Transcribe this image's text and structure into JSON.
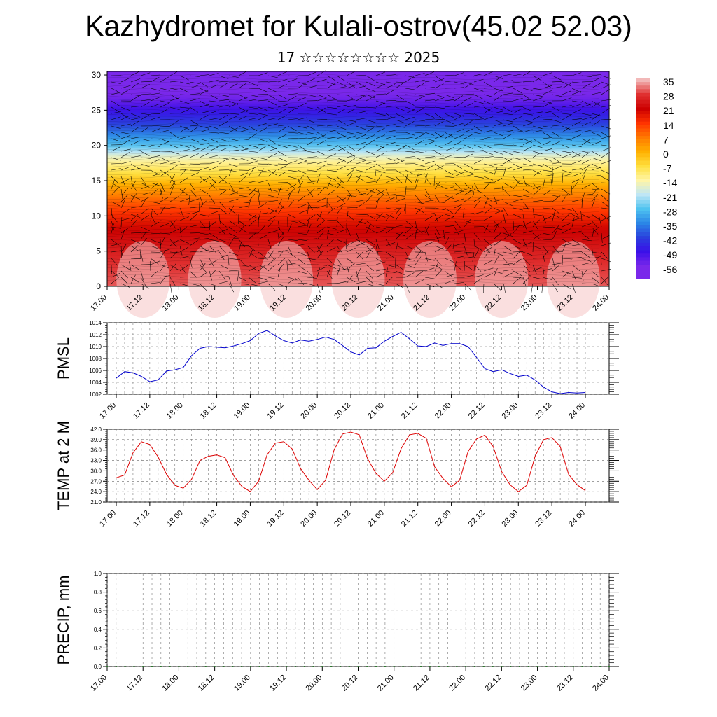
{
  "header": {
    "title": "Kazhydromet for Kulali-ostrov(45.02 52.03)",
    "subtitle": "17 ☆☆☆☆☆☆☆☆ 2025"
  },
  "chart_data": [
    {
      "type": "heatmap",
      "y_ticks": [
        "0",
        "5",
        "10",
        "15",
        "20",
        "25",
        "30"
      ],
      "ylim": [
        0,
        30.5
      ],
      "x_ticks": [
        "17.00",
        "17.12",
        "18.00",
        "18.12",
        "19.00",
        "19.12",
        "20.00",
        "20.12",
        "21.00",
        "21.12",
        "22.00",
        "22.12",
        "23.00",
        "23.12",
        "24.00"
      ],
      "colorbar_labels": [
        "35",
        "28",
        "21",
        "14",
        "7",
        "0",
        "-7",
        "-14",
        "-21",
        "-28",
        "-35",
        "-42",
        "-49",
        "-56"
      ],
      "colorbar_colors": [
        "#f2b8b8",
        "#e03030",
        "#cc0000",
        "#ff3300",
        "#ff7a00",
        "#ffb000",
        "#ffe040",
        "#fff5a8",
        "#bfe6f5",
        "#4fc3f0",
        "#2b86e6",
        "#2a40dd",
        "#3a10e8",
        "#7a28ea"
      ],
      "level_profile": [
        {
          "level": 0,
          "value": 30
        },
        {
          "level": 3,
          "value": 28
        },
        {
          "level": 8,
          "value": 21
        },
        {
          "level": 12,
          "value": 10
        },
        {
          "level": 14,
          "value": 2
        },
        {
          "level": 16,
          "value": -7
        },
        {
          "level": 18,
          "value": -14
        },
        {
          "level": 20,
          "value": -28
        },
        {
          "level": 23,
          "value": -42
        },
        {
          "level": 25,
          "value": -49
        },
        {
          "level": 27,
          "value": -56
        },
        {
          "level": 30.5,
          "value": -56
        }
      ],
      "grid": false
    },
    {
      "type": "line",
      "ylabel": "PMSL",
      "ylim": [
        1002,
        1014
      ],
      "y_ticks": [
        "1002",
        "1004",
        "1006",
        "1008",
        "1010",
        "1012",
        "1014"
      ],
      "x_ticks": [
        "17.00",
        "17.12",
        "18.00",
        "18.12",
        "19.00",
        "19.12",
        "20.00",
        "20.12",
        "21.00",
        "21.12",
        "22.00",
        "22.12",
        "23.00",
        "23.12",
        "24.00"
      ],
      "x_step_hours": 3,
      "values": [
        1004.7,
        1005.8,
        1005.6,
        1005.0,
        1004.1,
        1004.4,
        1005.9,
        1006.1,
        1006.5,
        1008.5,
        1009.7,
        1010.0,
        1009.9,
        1009.8,
        1010.1,
        1010.5,
        1011.0,
        1012.2,
        1012.7,
        1011.8,
        1011.0,
        1010.6,
        1011.1,
        1010.9,
        1011.2,
        1011.6,
        1011.2,
        1010.2,
        1009.1,
        1008.6,
        1009.7,
        1009.8,
        1010.9,
        1011.7,
        1012.4,
        1011.3,
        1010.1,
        1010.0,
        1010.6,
        1010.2,
        1010.5,
        1010.5,
        1010.0,
        1008.2,
        1006.3,
        1005.8,
        1006.1,
        1005.5,
        1005.0,
        1005.2,
        1004.4,
        1003.2,
        1002.4,
        1002.1,
        1002.3,
        1002.2,
        1002.3
      ],
      "color": "#0000cc",
      "grid": true
    },
    {
      "type": "line",
      "ylabel": "TEMP at 2 M",
      "ylim": [
        21,
        42
      ],
      "y_ticks": [
        "21.0",
        "24.0",
        "27.0",
        "30.0",
        "33.0",
        "36.0",
        "39.0",
        "42.0"
      ],
      "x_ticks": [
        "17.00",
        "17.12",
        "18.00",
        "18.12",
        "19.00",
        "19.12",
        "20.00",
        "20.12",
        "21.00",
        "21.12",
        "22.00",
        "22.12",
        "23.00",
        "23.12",
        "24.00"
      ],
      "x_step_hours": 3,
      "values": [
        28.0,
        28.8,
        35.2,
        38.4,
        37.6,
        34.0,
        29.0,
        25.8,
        25.0,
        27.6,
        33.0,
        34.2,
        34.6,
        33.8,
        28.7,
        25.5,
        24.0,
        27.0,
        34.6,
        38.0,
        38.4,
        36.3,
        30.7,
        27.3,
        24.6,
        27.3,
        36.0,
        40.6,
        41.2,
        40.4,
        33.5,
        29.3,
        27.0,
        29.5,
        36.4,
        40.4,
        40.8,
        39.4,
        31.2,
        27.8,
        25.4,
        27.3,
        35.6,
        39.2,
        40.3,
        37.0,
        29.8,
        26.0,
        24.0,
        25.8,
        34.2,
        39.0,
        39.6,
        37.0,
        29.0,
        26.0,
        24.3
      ],
      "color": "#dd0000",
      "grid": true
    },
    {
      "type": "bar",
      "ylabel": "PRECIP, mm",
      "ylim": [
        0,
        1.0
      ],
      "y_ticks": [
        "0.0",
        "0.2",
        "0.4",
        "0.6",
        "0.8",
        "1.0"
      ],
      "x_ticks": [
        "17.00",
        "17.12",
        "18.00",
        "18.12",
        "19.00",
        "19.12",
        "20.00",
        "20.12",
        "21.00",
        "21.12",
        "22.00",
        "22.12",
        "23.00",
        "23.12",
        "24.00"
      ],
      "x_step_hours": 3,
      "values": [
        0,
        0,
        0,
        0,
        0,
        0,
        0,
        0,
        0,
        0,
        0,
        0,
        0,
        0,
        0,
        0,
        0,
        0,
        0,
        0,
        0,
        0,
        0,
        0,
        0,
        0,
        0,
        0,
        0,
        0,
        0,
        0,
        0,
        0,
        0,
        0,
        0,
        0,
        0,
        0,
        0,
        0,
        0,
        0,
        0,
        0,
        0,
        0,
        0,
        0,
        0,
        0,
        0,
        0,
        0,
        0,
        0
      ],
      "color": "#2a7a2a",
      "grid": true
    }
  ]
}
